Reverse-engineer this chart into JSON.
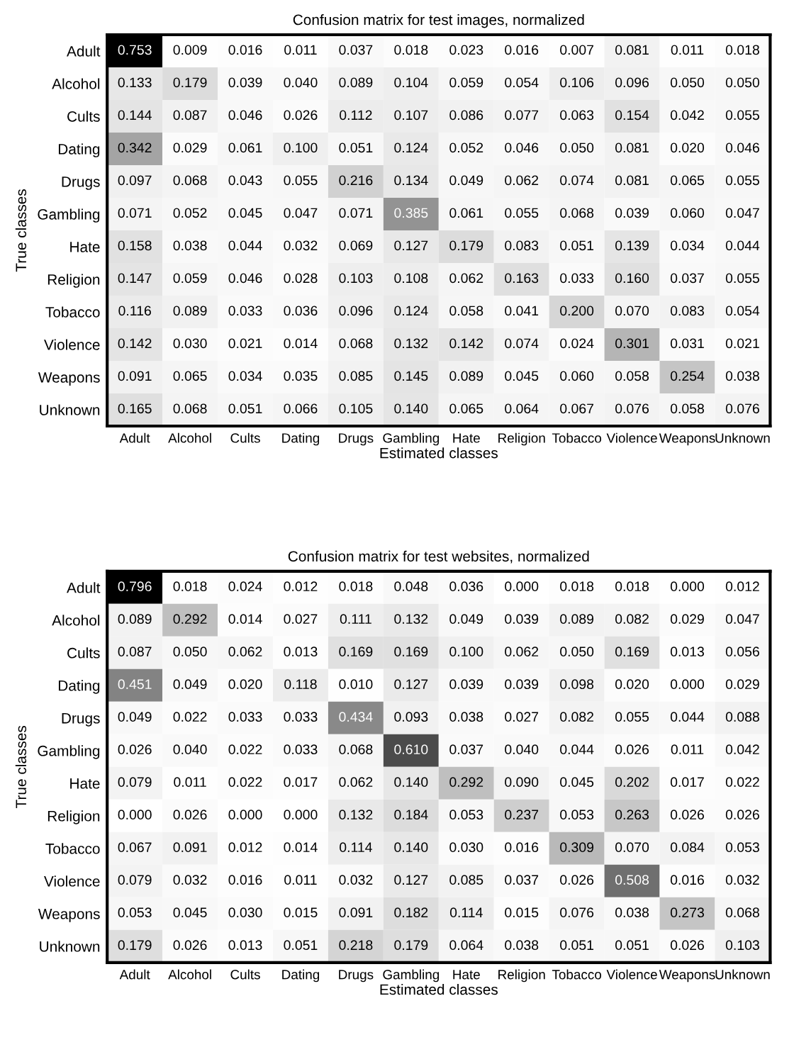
{
  "chart_data": [
    {
      "type": "heatmap",
      "title": "Confusion matrix for test images, normalized",
      "xlabel": "Estimated classes",
      "ylabel": "True classes",
      "categories": [
        "Adult",
        "Alcohol",
        "Cults",
        "Dating",
        "Drugs",
        "Gambling",
        "Hate",
        "Religion",
        "Tobacco",
        "Violence",
        "Weapons",
        "Unknown"
      ],
      "y_categories": [
        "Adult",
        "Alcohol",
        "Cults",
        "Dating",
        "Drugs",
        "Gambling",
        "Hate",
        "Religion",
        "Tobacco",
        "Violence",
        "Weapons",
        "Unknown"
      ],
      "cells": [
        [
          0.753,
          0.009,
          0.016,
          0.011,
          0.037,
          0.018,
          0.023,
          0.016,
          0.007,
          0.081,
          0.011,
          0.018
        ],
        [
          0.133,
          0.179,
          0.039,
          0.04,
          0.089,
          0.104,
          0.059,
          0.054,
          0.106,
          0.096,
          0.05,
          0.05
        ],
        [
          0.144,
          0.087,
          0.046,
          0.026,
          0.112,
          0.107,
          0.086,
          0.077,
          0.063,
          0.154,
          0.042,
          0.055
        ],
        [
          0.342,
          0.029,
          0.061,
          0.1,
          0.051,
          0.124,
          0.052,
          0.046,
          0.05,
          0.081,
          0.02,
          0.046
        ],
        [
          0.097,
          0.068,
          0.043,
          0.055,
          0.216,
          0.134,
          0.049,
          0.062,
          0.074,
          0.081,
          0.065,
          0.055
        ],
        [
          0.071,
          0.052,
          0.045,
          0.047,
          0.071,
          0.385,
          0.061,
          0.055,
          0.068,
          0.039,
          0.06,
          0.047
        ],
        [
          0.158,
          0.038,
          0.044,
          0.032,
          0.069,
          0.127,
          0.179,
          0.083,
          0.051,
          0.139,
          0.034,
          0.044
        ],
        [
          0.147,
          0.059,
          0.046,
          0.028,
          0.103,
          0.108,
          0.062,
          0.163,
          0.033,
          0.16,
          0.037,
          0.055
        ],
        [
          0.116,
          0.089,
          0.033,
          0.036,
          0.096,
          0.124,
          0.058,
          0.041,
          0.2,
          0.07,
          0.083,
          0.054
        ],
        [
          0.142,
          0.03,
          0.021,
          0.014,
          0.068,
          0.132,
          0.142,
          0.074,
          0.024,
          0.301,
          0.031,
          0.021
        ],
        [
          0.091,
          0.065,
          0.034,
          0.035,
          0.085,
          0.145,
          0.089,
          0.045,
          0.06,
          0.058,
          0.254,
          0.038
        ],
        [
          0.165,
          0.068,
          0.051,
          0.066,
          0.105,
          0.14,
          0.065,
          0.064,
          0.067,
          0.076,
          0.058,
          0.076
        ]
      ],
      "cell_labels": [
        [
          "0.753",
          "0.009",
          "0.016",
          "0.011",
          "0.037",
          "0.018",
          "0.023",
          "0.016",
          "0.007",
          "0.081",
          "0.011",
          "0.018"
        ],
        [
          "0.133",
          "0.179",
          "0.039",
          "0.040",
          "0.089",
          "0.104",
          "0.059",
          "0.054",
          "0.106",
          "0.096",
          "0.050",
          "0.050"
        ],
        [
          "0.144",
          "0.087",
          "0.046",
          "0.026",
          "0.112",
          "0.107",
          "0.086",
          "0.077",
          "0.063",
          "0.154",
          "0.042",
          "0.055"
        ],
        [
          "0.342",
          "0.029",
          "0.061",
          "0.100",
          "0.051",
          "0.124",
          "0.052",
          "0.046",
          "0.050",
          "0.081",
          "0.020",
          "0.046"
        ],
        [
          "0.097",
          "0.068",
          "0.043",
          "0.055",
          "0.216",
          "0.134",
          "0.049",
          "0.062",
          "0.074",
          "0.081",
          "0.065",
          "0.055"
        ],
        [
          "0.071",
          "0.052",
          "0.045",
          "0.047",
          "0.071",
          "0.385",
          "0.061",
          "0.055",
          "0.068",
          "0.039",
          "0.060",
          "0.047"
        ],
        [
          "0.158",
          "0.038",
          "0.044",
          "0.032",
          "0.069",
          "0.127",
          "0.179",
          "0.083",
          "0.051",
          "0.139",
          "0.034",
          "0.044"
        ],
        [
          "0.147",
          "0.059",
          "0.046",
          "0.028",
          "0.103",
          "0.108",
          "0.062",
          "0.163",
          "0.033",
          "0.160",
          "0.037",
          "0.055"
        ],
        [
          "0.116",
          "0.089",
          "0.033",
          "0.036",
          "0.096",
          "0.124",
          "0.058",
          "0.041",
          "0.200",
          "0.070",
          "0.083",
          "0.054"
        ],
        [
          "0.142",
          "0.030",
          "0.021",
          "0.014",
          "0.068",
          "0.132",
          "0.142",
          "0.074",
          "0.024",
          "0.301",
          "0.031",
          "0.021"
        ],
        [
          "0.091",
          "0.065",
          "0.034",
          "0.035",
          "0.085",
          "0.145",
          "0.089",
          "0.045",
          "0.060",
          "0.058",
          "0.254",
          "0.038"
        ],
        [
          "0.165",
          "0.068",
          "0.051",
          "0.066",
          "0.105",
          "0.140",
          "0.065",
          "0.064",
          "0.067",
          "0.076",
          "0.058",
          "0.076"
        ]
      ]
    },
    {
      "type": "heatmap",
      "title": "Confusion matrix for test websites, normalized",
      "xlabel": "Estimated classes",
      "ylabel": "True classes",
      "categories": [
        "Adult",
        "Alcohol",
        "Cults",
        "Dating",
        "Drugs",
        "Gambling",
        "Hate",
        "Religion",
        "Tobacco",
        "Violence",
        "Weapons",
        "Unknown"
      ],
      "y_categories": [
        "Adult",
        "Alcohol",
        "Cults",
        "Dating",
        "Drugs",
        "Gambling",
        "Hate",
        "Religion",
        "Tobacco",
        "Violence",
        "Weapons",
        "Unknown"
      ],
      "cells": [
        [
          0.796,
          0.018,
          0.024,
          0.012,
          0.018,
          0.048,
          0.036,
          0.0,
          0.018,
          0.018,
          0.0,
          0.012
        ],
        [
          0.089,
          0.292,
          0.014,
          0.027,
          0.111,
          0.132,
          0.049,
          0.039,
          0.089,
          0.082,
          0.029,
          0.047
        ],
        [
          0.087,
          0.05,
          0.062,
          0.013,
          0.169,
          0.169,
          0.1,
          0.062,
          0.05,
          0.169,
          0.013,
          0.056
        ],
        [
          0.451,
          0.049,
          0.02,
          0.118,
          0.01,
          0.127,
          0.039,
          0.039,
          0.098,
          0.02,
          0.0,
          0.029
        ],
        [
          0.049,
          0.022,
          0.033,
          0.033,
          0.434,
          0.093,
          0.038,
          0.027,
          0.082,
          0.055,
          0.044,
          0.088
        ],
        [
          0.026,
          0.04,
          0.022,
          0.033,
          0.068,
          0.61,
          0.037,
          0.04,
          0.044,
          0.026,
          0.011,
          0.042
        ],
        [
          0.079,
          0.011,
          0.022,
          0.017,
          0.062,
          0.14,
          0.292,
          0.09,
          0.045,
          0.202,
          0.017,
          0.022
        ],
        [
          0.0,
          0.026,
          0.0,
          0.0,
          0.132,
          0.184,
          0.053,
          0.237,
          0.053,
          0.263,
          0.026,
          0.026
        ],
        [
          0.067,
          0.091,
          0.012,
          0.014,
          0.114,
          0.14,
          0.03,
          0.016,
          0.309,
          0.07,
          0.084,
          0.053
        ],
        [
          0.079,
          0.032,
          0.016,
          0.011,
          0.032,
          0.127,
          0.085,
          0.037,
          0.026,
          0.508,
          0.016,
          0.032
        ],
        [
          0.053,
          0.045,
          0.03,
          0.015,
          0.091,
          0.182,
          0.114,
          0.015,
          0.076,
          0.038,
          0.273,
          0.068
        ],
        [
          0.179,
          0.026,
          0.013,
          0.051,
          0.218,
          0.179,
          0.064,
          0.038,
          0.051,
          0.051,
          0.026,
          0.103
        ]
      ],
      "cell_labels": [
        [
          "0.796",
          "0.018",
          "0.024",
          "0.012",
          "0.018",
          "0.048",
          "0.036",
          "0.000",
          "0.018",
          "0.018",
          "0.000",
          "0.012"
        ],
        [
          "0.089",
          "0.292",
          "0.014",
          "0.027",
          "0.111",
          "0.132",
          "0.049",
          "0.039",
          "0.089",
          "0.082",
          "0.029",
          "0.047"
        ],
        [
          "0.087",
          "0.050",
          "0.062",
          "0.013",
          "0.169",
          "0.169",
          "0.100",
          "0.062",
          "0.050",
          "0.169",
          "0.013",
          "0.056"
        ],
        [
          "0.451",
          "0.049",
          "0.020",
          "0.118",
          "0.010",
          "0.127",
          "0.039",
          "0.039",
          "0.098",
          "0.020",
          "0.000",
          "0.029"
        ],
        [
          "0.049",
          "0.022",
          "0.033",
          "0.033",
          "0.434",
          "0.093",
          "0.038",
          "0.027",
          "0.082",
          "0.055",
          "0.044",
          "0.088"
        ],
        [
          "0.026",
          "0.040",
          "0.022",
          "0.033",
          "0.068",
          "0.610",
          "0.037",
          "0.040",
          "0.044",
          "0.026",
          "0.011",
          "0.042"
        ],
        [
          "0.079",
          "0.011",
          "0.022",
          "0.017",
          "0.062",
          "0.140",
          "0.292",
          "0.090",
          "0.045",
          "0.202",
          "0.017",
          "0.022"
        ],
        [
          "0.000",
          "0.026",
          "0.000",
          "0.000",
          "0.132",
          "0.184",
          "0.053",
          "0.237",
          "0.053",
          "0.263",
          "0.026",
          "0.026"
        ],
        [
          "0.067",
          "0.091",
          "0.012",
          "0.014",
          "0.114",
          "0.140",
          "0.030",
          "0.016",
          "0.309",
          "0.070",
          "0.084",
          "0.053"
        ],
        [
          "0.079",
          "0.032",
          "0.016",
          "0.011",
          "0.032",
          "0.127",
          "0.085",
          "0.037",
          "0.026",
          "0.508",
          "0.016",
          "0.032"
        ],
        [
          "0.053",
          "0.045",
          "0.030",
          "0.015",
          "0.091",
          "0.182",
          "0.114",
          "0.015",
          "0.076",
          "0.038",
          "0.273",
          "0.068"
        ],
        [
          "0.179",
          "0.026",
          "0.013",
          "0.051",
          "0.218",
          "0.179",
          "0.064",
          "0.038",
          "0.051",
          "0.051",
          "0.026",
          "0.103"
        ]
      ]
    }
  ]
}
